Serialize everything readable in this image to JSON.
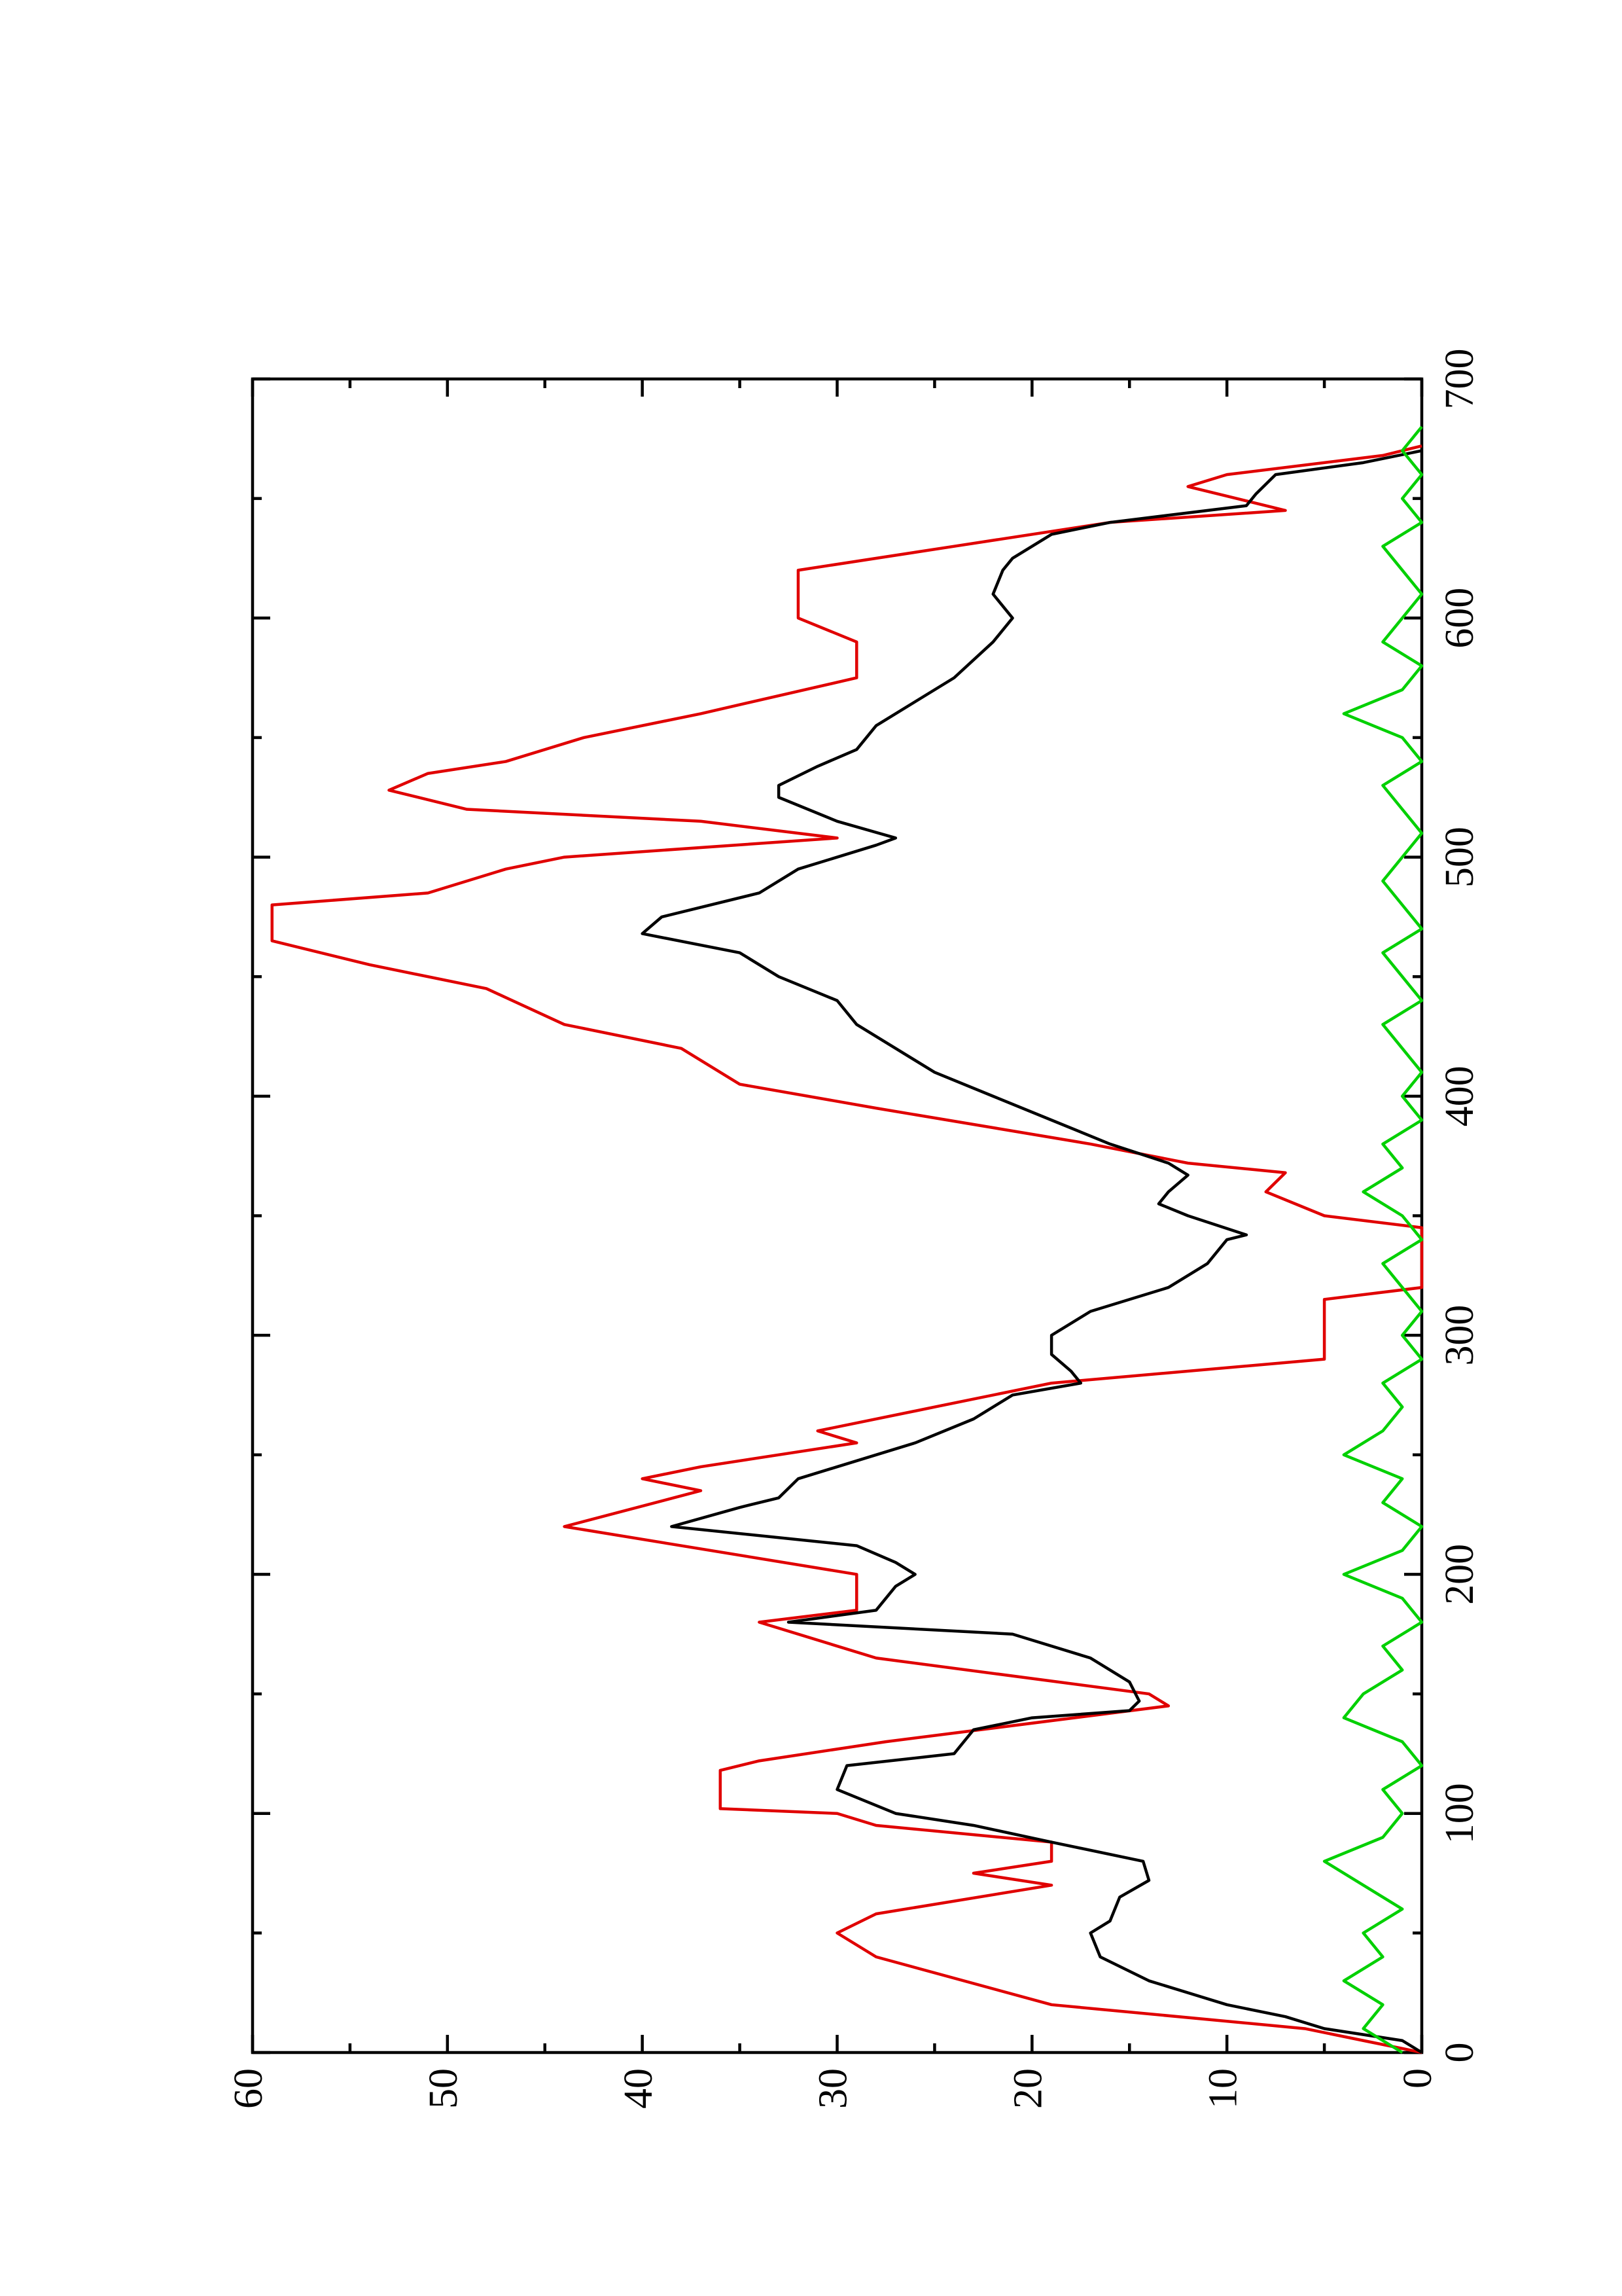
{
  "chart_data": {
    "type": "line",
    "orientation": "rotated",
    "xlim": [
      0,
      700
    ],
    "xticks": [
      0,
      100,
      200,
      300,
      400,
      500,
      600,
      700
    ],
    "xminorticks": [
      50,
      150,
      250,
      350,
      450,
      550,
      650
    ],
    "ylim": [
      0,
      60
    ],
    "yticks": [
      0,
      10,
      20,
      30,
      40,
      50,
      60
    ],
    "yminorticks": [
      5,
      15,
      25,
      35,
      45,
      55
    ],
    "series": [
      {
        "color": "#e00000",
        "x": [
          0,
          5,
          10,
          20,
          40,
          50,
          58,
          70,
          75,
          80,
          88,
          95,
          100,
          102,
          118,
          122,
          130,
          145,
          150,
          165,
          180,
          185,
          200,
          220,
          235,
          240,
          245,
          255,
          260,
          270,
          280,
          290,
          315,
          320,
          345,
          350,
          360,
          368,
          372,
          380,
          395,
          405,
          420,
          430,
          445,
          455,
          465,
          480,
          485,
          495,
          500,
          508,
          515,
          520,
          528,
          535,
          540,
          550,
          560,
          575,
          590,
          600,
          620,
          630,
          640,
          645,
          655,
          660,
          668,
          672
        ],
        "values": [
          0,
          3,
          6,
          19,
          28,
          30,
          28,
          19,
          23,
          19,
          19,
          28,
          30,
          36,
          36,
          34,
          27.5,
          13,
          14,
          28,
          34,
          29,
          29,
          44,
          37,
          40,
          37,
          29,
          31,
          25,
          19,
          5,
          5,
          0,
          0,
          5,
          8,
          7,
          12,
          17,
          28,
          35,
          38,
          44,
          48,
          54,
          59,
          59,
          51,
          47,
          44,
          30,
          37,
          49,
          53,
          51,
          47,
          43,
          37,
          29,
          29,
          32,
          32,
          24,
          16,
          7,
          12,
          10,
          2,
          0
        ]
      },
      {
        "color": "#000000",
        "x": [
          0,
          5,
          10,
          15,
          20,
          30,
          40,
          50,
          55,
          65,
          72,
          80,
          88,
          95,
          100,
          110,
          120,
          125,
          135,
          140,
          143,
          147,
          155,
          165,
          175,
          180,
          185,
          195,
          200,
          205,
          212,
          220,
          228,
          232,
          240,
          245,
          255,
          265,
          275,
          280,
          285,
          292,
          300,
          310,
          320,
          330,
          340,
          342,
          350,
          355,
          360,
          367,
          372,
          380,
          390,
          400,
          410,
          420,
          430,
          440,
          450,
          460,
          468,
          475,
          485,
          495,
          505,
          508,
          515,
          525,
          530,
          538,
          545,
          555,
          565,
          575,
          590,
          600,
          610,
          620,
          625,
          635,
          640,
          647,
          652,
          660,
          665,
          670
        ],
        "values": [
          0,
          1,
          5,
          7,
          10,
          14,
          16.5,
          17,
          16,
          15.5,
          14,
          14.3,
          19,
          23,
          27,
          30,
          29.5,
          24,
          23,
          20,
          15,
          14.5,
          15,
          17,
          21,
          32.5,
          28,
          27,
          26,
          27,
          29,
          38.5,
          35,
          33,
          32,
          30,
          26,
          23,
          21,
          17.5,
          18,
          19,
          19,
          17,
          13,
          11,
          10,
          9,
          12,
          13.5,
          13,
          12,
          13,
          16,
          19,
          22,
          25,
          27,
          29,
          30,
          33,
          35,
          40,
          39,
          34,
          32,
          28,
          27,
          30,
          33,
          33,
          31,
          29,
          28,
          26,
          24,
          22,
          21,
          22,
          21.5,
          21,
          19,
          16,
          9,
          8.5,
          7.5,
          3,
          0
        ]
      },
      {
        "color": "#00d000",
        "x": [
          0,
          10,
          20,
          30,
          40,
          50,
          60,
          70,
          80,
          90,
          100,
          110,
          120,
          130,
          140,
          150,
          160,
          170,
          180,
          190,
          200,
          210,
          220,
          230,
          240,
          250,
          260,
          270,
          280,
          290,
          300,
          310,
          320,
          330,
          340,
          350,
          360,
          370,
          380,
          390,
          400,
          410,
          420,
          430,
          440,
          450,
          460,
          470,
          480,
          490,
          500,
          510,
          520,
          530,
          540,
          550,
          560,
          570,
          580,
          590,
          600,
          610,
          620,
          630,
          640,
          650,
          660,
          670,
          680
        ],
        "values": [
          1,
          3,
          2,
          4,
          2,
          3,
          1,
          3,
          5,
          2,
          1,
          2,
          0,
          1,
          4,
          3,
          1,
          2,
          0,
          1,
          4,
          1,
          0,
          2,
          1,
          4,
          2,
          1,
          2,
          0,
          1,
          0,
          1,
          2,
          0,
          1,
          3,
          1,
          2,
          0,
          1,
          0,
          1,
          2,
          0,
          1,
          2,
          0,
          1,
          2,
          1,
          0,
          1,
          2,
          0,
          1,
          4,
          1,
          0,
          2,
          1,
          0,
          1,
          2,
          0,
          1,
          0,
          1,
          0
        ]
      }
    ]
  }
}
